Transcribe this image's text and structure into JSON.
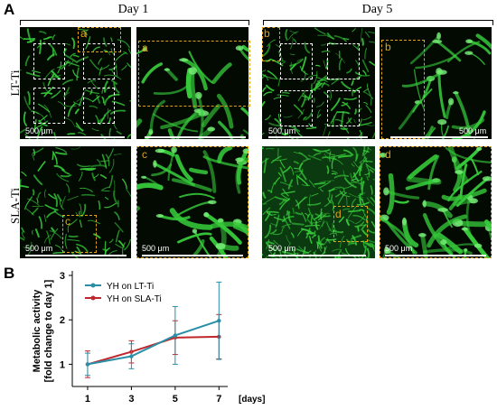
{
  "panel_a": {
    "letter": "A",
    "day1_label": "Day 1",
    "day5_label": "Day 5",
    "row1_label": "LT-Ti",
    "row2_label": "SLA-Ti",
    "scalebar": "500 μm",
    "roi_tags": {
      "a": "a",
      "b": "b",
      "c": "c",
      "d": "d"
    },
    "colors": {
      "fluorescence": "#36c93a",
      "roi_gold": "#e0a21a",
      "roi_white": "#ffffff"
    }
  },
  "panel_b": {
    "letter": "B"
  },
  "chart_data": {
    "type": "line",
    "ylabel": "Metabolic activity\n[fold change to day 1]",
    "x_unit_label": "[days]",
    "x": [
      1,
      3,
      5,
      7
    ],
    "xticks": [
      "1",
      "3",
      "5",
      "7"
    ],
    "yticks": [
      "1",
      "2",
      "3"
    ],
    "ylim": [
      0.5,
      3
    ],
    "legend_position": "top-left",
    "series": [
      {
        "name": "YH on LT-Ti",
        "color": "#2a8fa6",
        "values": [
          1.0,
          1.18,
          1.65,
          1.98
        ],
        "err": [
          0.25,
          0.28,
          0.65,
          0.87
        ]
      },
      {
        "name": "YH on SLA-Ti",
        "color": "#c0282d",
        "values": [
          1.0,
          1.28,
          1.6,
          1.62
        ],
        "err": [
          0.3,
          0.25,
          0.38,
          0.5
        ]
      }
    ]
  }
}
